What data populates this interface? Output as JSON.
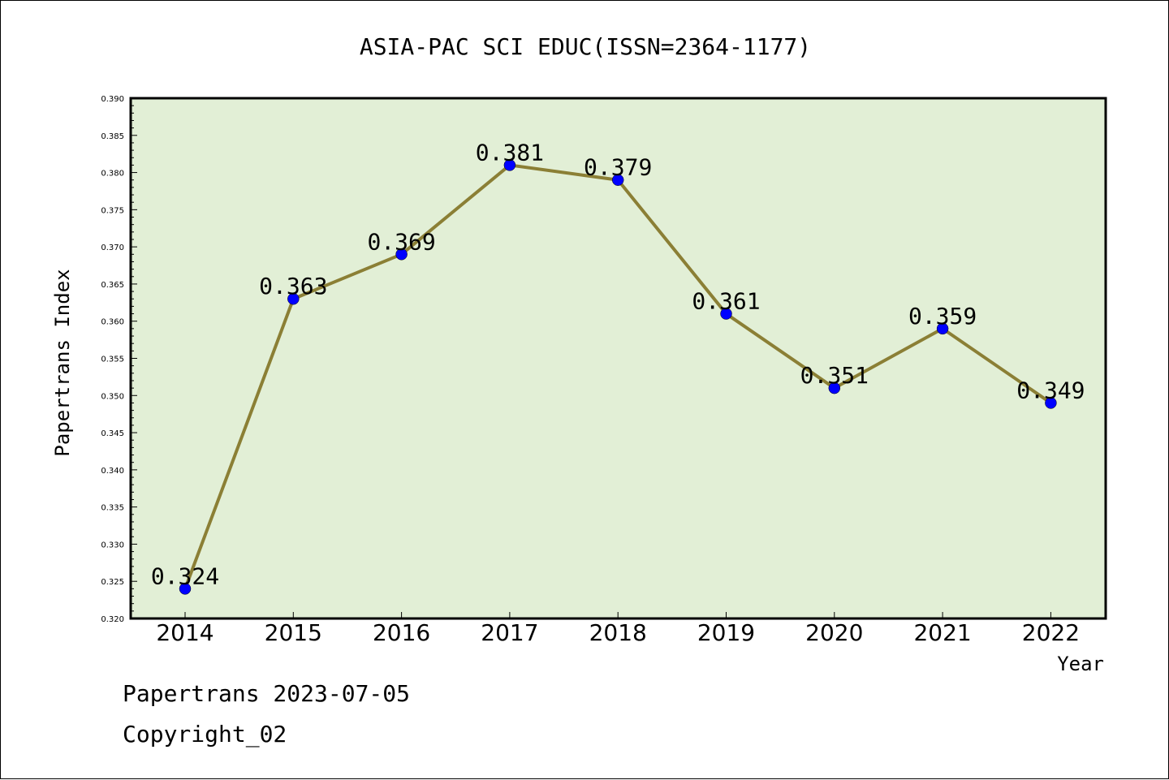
{
  "chart_data": {
    "type": "line",
    "title": "ASIA-PAC SCI EDUC(ISSN=2364-1177)",
    "xlabel": "Year",
    "ylabel": "Papertrans Index",
    "categories": [
      "2014",
      "2015",
      "2016",
      "2017",
      "2018",
      "2019",
      "2020",
      "2021",
      "2022"
    ],
    "values": [
      0.324,
      0.363,
      0.369,
      0.381,
      0.379,
      0.361,
      0.351,
      0.359,
      0.349
    ],
    "data_labels": [
      "0.324",
      "0.363",
      "0.369",
      "0.381",
      "0.379",
      "0.361",
      "0.351",
      "0.359",
      "0.349"
    ],
    "ylim": [
      0.32,
      0.39
    ],
    "yticks": [
      "0.320",
      "0.325",
      "0.330",
      "0.335",
      "0.340",
      "0.345",
      "0.350",
      "0.355",
      "0.360",
      "0.365",
      "0.370",
      "0.375",
      "0.380",
      "0.385",
      "0.390"
    ],
    "grid": false,
    "colors": {
      "plot_background": "#e2efd6",
      "line": "#8b7f35",
      "marker": "#0000ff"
    }
  },
  "footer": {
    "line1": "Papertrans 2023-07-05",
    "line2": "Copyright_02"
  }
}
